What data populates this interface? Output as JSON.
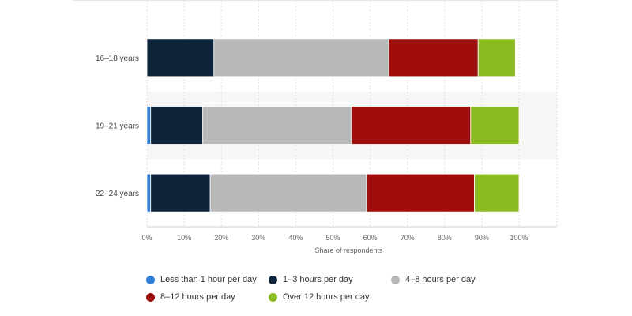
{
  "chart_data": {
    "type": "bar",
    "orientation": "horizontal",
    "stacked": true,
    "categories": [
      "16-18 years",
      "19-21 years",
      "22-24 years"
    ],
    "series": [
      {
        "name": "Less than 1 hour per day",
        "color": "#2f7ed8",
        "values": [
          0,
          1,
          1
        ]
      },
      {
        "name": "1-3 hours per day",
        "color": "#0d233a",
        "values": [
          18,
          14,
          16
        ]
      },
      {
        "name": "4-8 hours per day",
        "color": "#b8b8b8",
        "values": [
          47,
          40,
          42
        ]
      },
      {
        "name": "8-12 hours per day",
        "color": "#a00d0d",
        "values": [
          24,
          32,
          29
        ]
      },
      {
        "name": "Over 12 hours per day",
        "color": "#8bbc21",
        "values": [
          10,
          13,
          12
        ]
      }
    ],
    "x_ticks": [
      "0%",
      "10%",
      "20%",
      "30%",
      "40%",
      "50%",
      "60%",
      "70%",
      "80%",
      "90%",
      "100%"
    ],
    "xlim": [
      0,
      100
    ],
    "xlabel": "Share of respondents",
    "legend_position": "bottom",
    "grid": true
  }
}
